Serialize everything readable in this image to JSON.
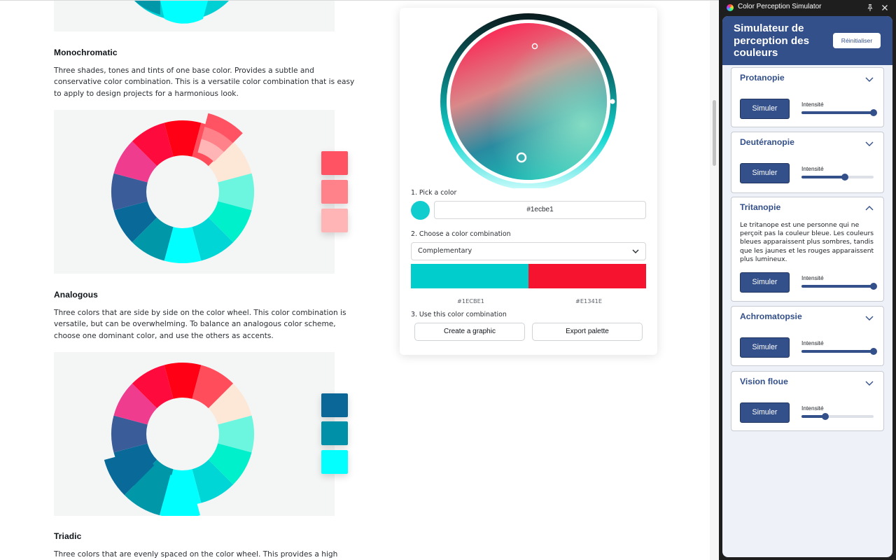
{
  "article": {
    "sections": [
      {
        "title": "Monochromatic",
        "description": "Three shades, tones and tints of one base color. Provides a subtle and conservative color combination. This is a versatile color combination that is easy to apply to design projects for a harmonious look.",
        "swatches": [
          "#ff5263",
          "#ff8189",
          "#ffb5b5"
        ]
      },
      {
        "title": "Analogous",
        "description": "Three colors that are side by side on the color wheel. This color combination is versatile, but can be overwhelming. To balance an analogous color scheme, choose one dominant color, and use the others as accents.",
        "swatches": [
          "#0b6798",
          "#0091a8",
          "#04ffff"
        ]
      },
      {
        "title": "Triadic",
        "description": "Three colors that are evenly spaced on the color wheel. This provides a high"
      }
    ],
    "wheel_colors": [
      "#ff0015",
      "#ff4d5c",
      "#fde8d7",
      "#6cf5df",
      "#00f0cc",
      "#00d6d6",
      "#00ffff",
      "#0097a9",
      "#096a99",
      "#3a5d9a",
      "#f03c8f",
      "#ff0a3c"
    ]
  },
  "picker": {
    "step1_label": "1. Pick a color",
    "hex_value": "#1ecbe1",
    "selected_color": "#12cdce",
    "step2_label": "2. Choose a color combination",
    "combination": "Complementary",
    "palette": [
      {
        "color": "#00cdcc",
        "hex": "#1ECBE1"
      },
      {
        "color": "#f5132f",
        "hex": "#E1341E"
      }
    ],
    "step3_label": "3. Use this color combination",
    "create_button": "Create a graphic",
    "export_button": "Export palette"
  },
  "simulator": {
    "app_title": "Color Perception Simulator",
    "heading": "Simulateur de perception des couleurs",
    "reset_label": "Réinitialiser",
    "button_label": "Simuler",
    "intensity_label": "Intensité",
    "accent": "#33508a",
    "cards": [
      {
        "title": "Protanopie",
        "expanded": false,
        "intensity": 1.0
      },
      {
        "title": "Deutéranopie",
        "expanded": false,
        "intensity": 0.6
      },
      {
        "title": "Tritanopie",
        "expanded": true,
        "intensity": 1.0,
        "description": "Le tritanope est une personne qui ne perçoit pas la couleur bleue. Les couleurs bleues apparaissent plus sombres, tandis que les jaunes et les rouges apparaissent plus lumineux."
      },
      {
        "title": "Achromatopsie",
        "expanded": false,
        "intensity": 1.0
      },
      {
        "title": "Vision floue",
        "expanded": false,
        "intensity": 0.33
      }
    ]
  }
}
